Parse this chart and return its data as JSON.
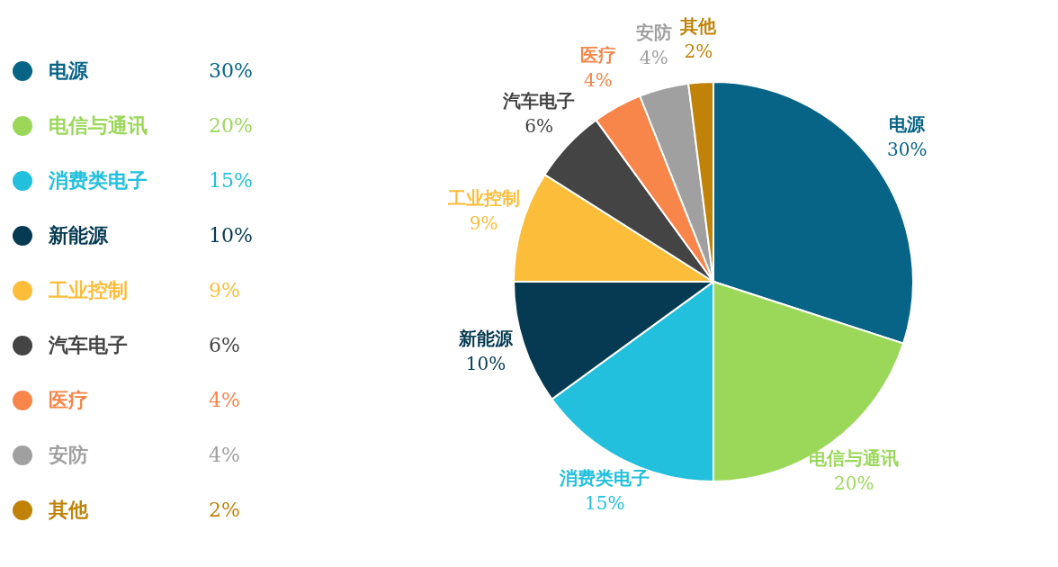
{
  "chart_data": {
    "type": "pie",
    "categories": [
      "电源",
      "电信与通讯",
      "消费类电子",
      "新能源",
      "工业控制",
      "汽车电子",
      "医疗",
      "安防",
      "其他"
    ],
    "values": [
      30,
      20,
      15,
      10,
      9,
      6,
      4,
      4,
      2
    ],
    "value_labels": [
      "30%",
      "20%",
      "15%",
      "10%",
      "9%",
      "6%",
      "4%",
      "4%",
      "2%"
    ],
    "colors": [
      "#076486",
      "#9bd85a",
      "#22c0dc",
      "#063a52",
      "#fbbd3a",
      "#444444",
      "#f8854a",
      "#a0a0a0",
      "#c08208"
    ],
    "legend": "left"
  }
}
